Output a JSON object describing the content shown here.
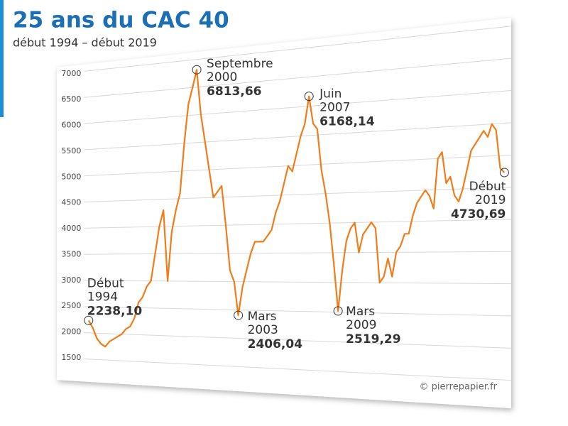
{
  "chart_data": {
    "type": "line",
    "title": "25 ans du CAC 40",
    "subtitle": "début 1994 – début 2019",
    "credit": "© pierrepapier.fr",
    "color": "#f07d1a",
    "grid": true,
    "ylim": [
      1400,
      7100
    ],
    "yticks": [
      1500,
      2000,
      2500,
      3000,
      3500,
      4000,
      4500,
      5000,
      5500,
      6000,
      6500,
      7000
    ],
    "values": [
      2238.1,
      2100,
      1900,
      1800,
      1750,
      1850,
      1900,
      1950,
      2000,
      2100,
      2150,
      2300,
      2600,
      2700,
      2900,
      3000,
      3500,
      4000,
      4300,
      3000,
      3900,
      4300,
      4600,
      5500,
      6200,
      6500,
      6813.66,
      6000,
      5500,
      5000,
      4500,
      4600,
      4700,
      4000,
      3200,
      3000,
      2406.04,
      2900,
      3200,
      3500,
      3700,
      3700,
      3700,
      3800,
      3900,
      4200,
      4400,
      4700,
      5000,
      4900,
      5200,
      5500,
      5700,
      6168.14,
      5700,
      5600,
      4900,
      4500,
      4000,
      3300,
      2519.29,
      3200,
      3700,
      3900,
      4000,
      3500,
      3800,
      3900,
      4000,
      3900,
      3000,
      3100,
      3400,
      3100,
      3500,
      3600,
      3800,
      3800,
      4100,
      4300,
      4400,
      4500,
      4400,
      4200,
      5000,
      5100,
      4600,
      4700,
      4400,
      4300,
      4500,
      4800,
      5100,
      5200,
      5300,
      5400,
      5300,
      5500,
      5400,
      4800,
      4730.69
    ],
    "annotations": [
      {
        "lines": [
          "Début",
          "1994"
        ],
        "value": 2238.1,
        "value_label": "2238,10"
      },
      {
        "lines": [
          "Septembre",
          "2000"
        ],
        "value": 6813.66,
        "value_label": "6813,66"
      },
      {
        "lines": [
          "Mars",
          "2003"
        ],
        "value": 2406.04,
        "value_label": "2406,04"
      },
      {
        "lines": [
          "Juin",
          "2007"
        ],
        "value": 6168.14,
        "value_label": "6168,14"
      },
      {
        "lines": [
          "Mars",
          "2009"
        ],
        "value": 2519.29,
        "value_label": "2519,29"
      },
      {
        "lines": [
          "Début",
          "2019"
        ],
        "value": 4730.69,
        "value_label": "4730,69"
      }
    ]
  }
}
